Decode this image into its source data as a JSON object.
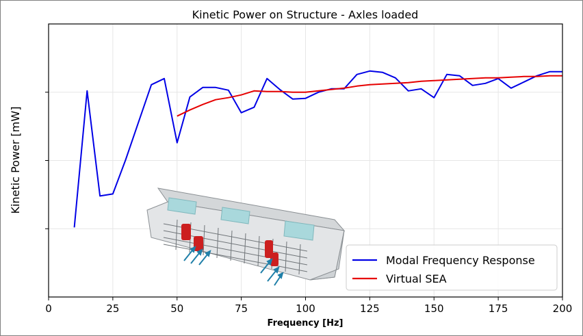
{
  "chart_data": {
    "type": "line",
    "title": "Kinetic Power on Structure - Axles loaded",
    "xlabel": "Frequency [Hz]",
    "ylabel": "Kinetic Power [mW]",
    "xlim": [
      0,
      200
    ],
    "ylim": [
      0,
      4
    ],
    "x_ticks": [
      "0",
      "25",
      "50",
      "75",
      "100",
      "125",
      "150",
      "175",
      "200"
    ],
    "y_ticks_labeled": false,
    "grid": true,
    "legend_position": "bottom-right",
    "series": [
      {
        "name": "Modal Frequency Response",
        "color": "#0000e6",
        "x": [
          10,
          15,
          20,
          25,
          30,
          35,
          40,
          45,
          50,
          55,
          60,
          65,
          70,
          75,
          80,
          85,
          90,
          95,
          100,
          105,
          110,
          115,
          120,
          125,
          130,
          135,
          140,
          145,
          150,
          155,
          160,
          165,
          170,
          175,
          180,
          185,
          190,
          195,
          200
        ],
        "y": [
          1.02,
          3.02,
          1.48,
          1.51,
          2.01,
          2.56,
          3.11,
          3.2,
          2.26,
          2.93,
          3.07,
          3.07,
          3.03,
          2.7,
          2.78,
          3.2,
          3.04,
          2.9,
          2.91,
          3.0,
          3.05,
          3.05,
          3.26,
          3.31,
          3.29,
          3.21,
          3.02,
          3.05,
          2.92,
          3.26,
          3.24,
          3.1,
          3.13,
          3.2,
          3.06,
          3.15,
          3.24,
          3.3,
          3.3
        ]
      },
      {
        "name": "Virtual SEA",
        "color": "#e60000",
        "x": [
          50,
          55,
          60,
          65,
          70,
          75,
          80,
          85,
          90,
          95,
          100,
          105,
          110,
          115,
          120,
          125,
          130,
          135,
          140,
          145,
          150,
          155,
          160,
          165,
          170,
          175,
          180,
          185,
          190,
          195,
          200
        ],
        "y": [
          2.65,
          2.74,
          2.82,
          2.89,
          2.92,
          2.96,
          3.02,
          3.01,
          3.01,
          3.0,
          3.0,
          3.02,
          3.04,
          3.06,
          3.09,
          3.11,
          3.12,
          3.13,
          3.14,
          3.16,
          3.17,
          3.18,
          3.19,
          3.2,
          3.21,
          3.21,
          3.22,
          3.23,
          3.23,
          3.24,
          3.24
        ]
      }
    ]
  },
  "inset_image": {
    "subject": "bus-structure-model"
  }
}
